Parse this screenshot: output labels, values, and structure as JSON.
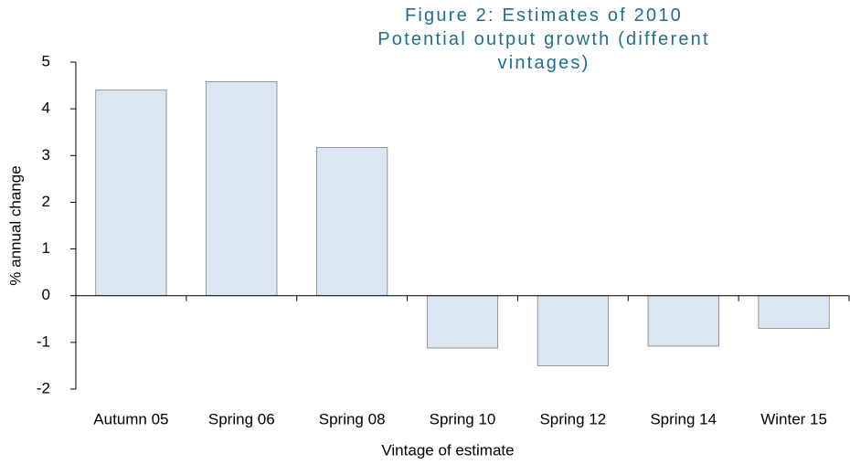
{
  "chart_data": {
    "type": "bar",
    "title": "Figure 2:  Estimates of 2010 Potential output growth (different vintages)",
    "x_label": "Vintage of estimate",
    "y_label": "% annual change",
    "categories": [
      "Autumn 05",
      "Spring 06",
      "Spring 08",
      "Spring 10",
      "Spring 12",
      "Spring 14",
      "Winter 15"
    ],
    "values": [
      4.4,
      4.58,
      3.17,
      -1.12,
      -1.5,
      -1.08,
      -0.7
    ],
    "color": "#dce6f2",
    "ylim": [
      -2,
      5
    ],
    "yticks": [
      -2,
      -1,
      0,
      1,
      2,
      3,
      4,
      5
    ],
    "grid": false
  }
}
